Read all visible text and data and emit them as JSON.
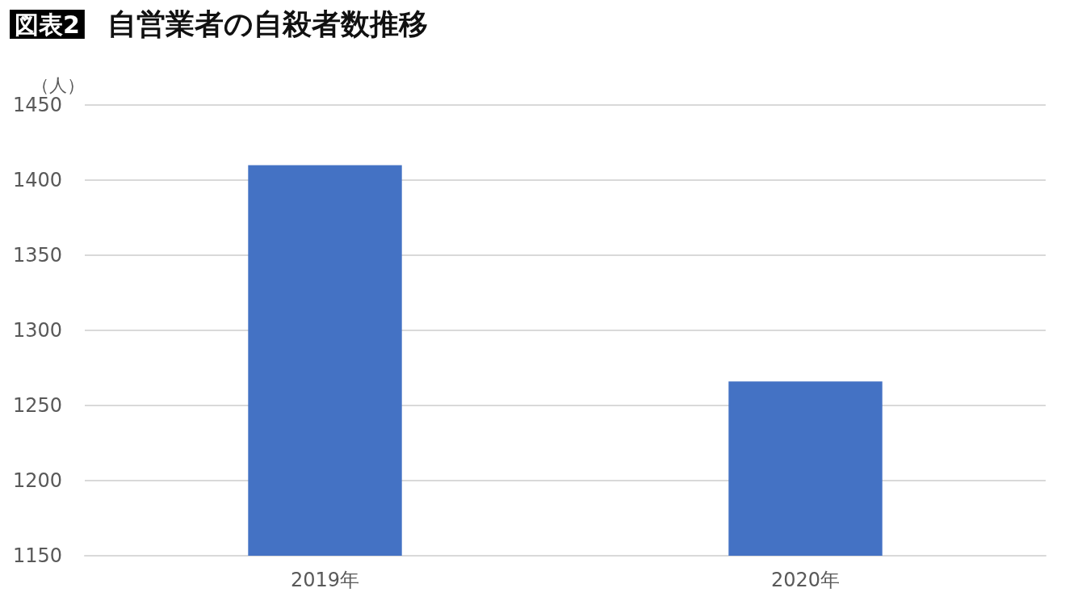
{
  "chart_data": {
    "type": "bar",
    "title": "自営業者の自殺者数推移",
    "annotations": [
      "図表2"
    ],
    "ylabel": "（人）",
    "categories": [
      "2019年",
      "2020年"
    ],
    "values": [
      1410,
      1266
    ],
    "color": "#4472c4",
    "ylim": [
      1150,
      1450
    ],
    "yticks": [
      1150,
      1200,
      1250,
      1300,
      1350,
      1400,
      1450
    ],
    "grid": "y"
  }
}
